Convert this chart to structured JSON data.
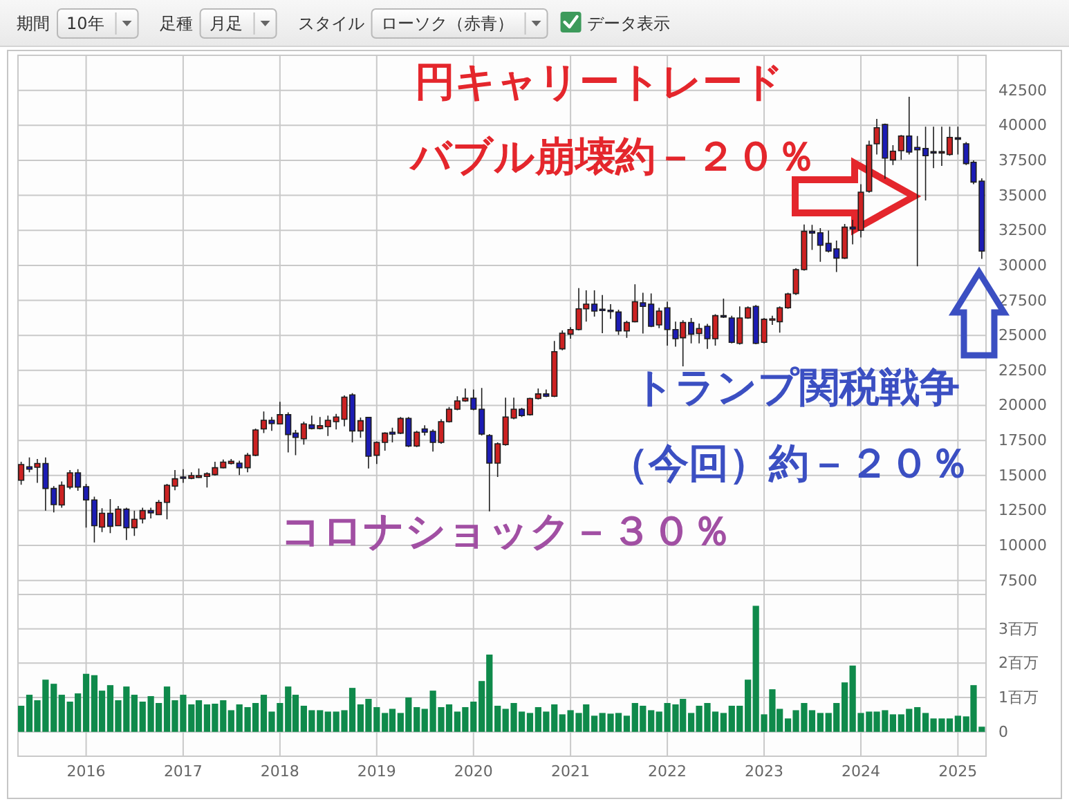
{
  "chart_data": [
    {
      "type": "other",
      "annotations": [
        "期間",
        "10年",
        "足種",
        "月足",
        "スタイル",
        "ローソク（赤青）",
        "データ表示"
      ]
    },
    {
      "type": "candlestick",
      "x": [
        "2015-05",
        "2015-06",
        "2015-07",
        "2015-08",
        "2015-09",
        "2015-10",
        "2015-11",
        "2015-12",
        "2016-01",
        "2016-02",
        "2016-03",
        "2016-04",
        "2016-05",
        "2016-06",
        "2016-07",
        "2016-08",
        "2016-09",
        "2016-10",
        "2016-11",
        "2016-12",
        "2017-01",
        "2017-02",
        "2017-03",
        "2017-04",
        "2017-05",
        "2017-06",
        "2017-07",
        "2017-08",
        "2017-09",
        "2017-10",
        "2017-11",
        "2017-12",
        "2018-01",
        "2018-02",
        "2018-03",
        "2018-04",
        "2018-05",
        "2018-06",
        "2018-07",
        "2018-08",
        "2018-09",
        "2018-10",
        "2018-11",
        "2018-12",
        "2019-01",
        "2019-02",
        "2019-03",
        "2019-04",
        "2019-05",
        "2019-06",
        "2019-07",
        "2019-08",
        "2019-09",
        "2019-10",
        "2019-11",
        "2019-12",
        "2020-01",
        "2020-02",
        "2020-03",
        "2020-04",
        "2020-05",
        "2020-06",
        "2020-07",
        "2020-08",
        "2020-09",
        "2020-10",
        "2020-11",
        "2020-12",
        "2021-01",
        "2021-02",
        "2021-03",
        "2021-04",
        "2021-05",
        "2021-06",
        "2021-07",
        "2021-08",
        "2021-09",
        "2021-10",
        "2021-11",
        "2021-12",
        "2022-01",
        "2022-02",
        "2022-03",
        "2022-04",
        "2022-05",
        "2022-06",
        "2022-07",
        "2022-08",
        "2022-09",
        "2022-10",
        "2022-11",
        "2022-12",
        "2023-01",
        "2023-02",
        "2023-03",
        "2023-04",
        "2023-05",
        "2023-06",
        "2023-07",
        "2023-08",
        "2023-09",
        "2023-10",
        "2023-11",
        "2023-12",
        "2024-01",
        "2024-02",
        "2024-03",
        "2024-04",
        "2024-05",
        "2024-06",
        "2024-07",
        "2024-08",
        "2024-09",
        "2024-10",
        "2024-11",
        "2024-12",
        "2025-01",
        "2025-02",
        "2025-03",
        "2025-04"
      ],
      "ohlc": [
        [
          14660,
          15980,
          14330,
          15780
        ],
        [
          15620,
          16280,
          15220,
          15450
        ],
        [
          15580,
          16180,
          14470,
          15850
        ],
        [
          15850,
          16280,
          12490,
          14070
        ],
        [
          14070,
          14240,
          12360,
          12920
        ],
        [
          12890,
          14570,
          12690,
          14300
        ],
        [
          14170,
          15390,
          14010,
          15190
        ],
        [
          15190,
          15450,
          13910,
          14170
        ],
        [
          14200,
          14400,
          11270,
          13250
        ],
        [
          13250,
          13480,
          10220,
          11410
        ],
        [
          11310,
          12660,
          10950,
          12300
        ],
        [
          12300,
          13310,
          10880,
          11370
        ],
        [
          11410,
          12820,
          11370,
          12590
        ],
        [
          12590,
          12690,
          10390,
          11270
        ],
        [
          11270,
          12490,
          10680,
          11870
        ],
        [
          11900,
          12690,
          11570,
          12490
        ],
        [
          12490,
          12690,
          11930,
          12330
        ],
        [
          12200,
          13250,
          12160,
          13080
        ],
        [
          13080,
          14400,
          11870,
          14300
        ],
        [
          14240,
          15390,
          13940,
          14760
        ],
        [
          14890,
          15450,
          14470,
          14800
        ],
        [
          14800,
          15220,
          14730,
          14990
        ],
        [
          14860,
          15490,
          14800,
          14990
        ],
        [
          14930,
          15220,
          14140,
          15120
        ],
        [
          15060,
          15980,
          14990,
          15550
        ],
        [
          15550,
          16140,
          15490,
          15950
        ],
        [
          15850,
          16180,
          15780,
          16010
        ],
        [
          15880,
          16050,
          15030,
          15550
        ],
        [
          15550,
          16610,
          15220,
          16440
        ],
        [
          16440,
          18350,
          16370,
          18250
        ],
        [
          18320,
          19570,
          18020,
          18940
        ],
        [
          18940,
          19170,
          18180,
          18710
        ],
        [
          18680,
          20260,
          18680,
          19340
        ],
        [
          19340,
          19500,
          16640,
          17920
        ],
        [
          18020,
          18250,
          16440,
          17720
        ],
        [
          17620,
          18840,
          17200,
          18680
        ],
        [
          18610,
          19270,
          18280,
          18350
        ],
        [
          18350,
          19170,
          18280,
          18550
        ],
        [
          18480,
          19270,
          17820,
          18940
        ],
        [
          18840,
          19400,
          18280,
          19170
        ],
        [
          19010,
          20720,
          18510,
          20590
        ],
        [
          20750,
          20880,
          17360,
          18180
        ],
        [
          18180,
          19140,
          17690,
          18910
        ],
        [
          19140,
          19170,
          15490,
          16370
        ],
        [
          16440,
          17430,
          15820,
          17360
        ],
        [
          17360,
          18090,
          16770,
          18020
        ],
        [
          18090,
          18410,
          17360,
          17950
        ],
        [
          18020,
          19170,
          17950,
          19070
        ],
        [
          19070,
          19170,
          17030,
          17100
        ],
        [
          17100,
          18180,
          17030,
          18090
        ],
        [
          18320,
          18580,
          17850,
          18090
        ],
        [
          18150,
          18280,
          16700,
          17360
        ],
        [
          17360,
          19010,
          17260,
          18840
        ],
        [
          18840,
          19890,
          18780,
          19730
        ],
        [
          19730,
          20650,
          19660,
          20320
        ],
        [
          20320,
          21210,
          20260,
          20520
        ],
        [
          20520,
          21140,
          19660,
          19730
        ],
        [
          19730,
          21240,
          17850,
          17950
        ],
        [
          17850,
          17950,
          12430,
          15880
        ],
        [
          15880,
          17360,
          14890,
          17260
        ],
        [
          17200,
          20550,
          17130,
          19170
        ],
        [
          19100,
          20550,
          19010,
          19730
        ],
        [
          19730,
          19830,
          19170,
          19270
        ],
        [
          19340,
          20550,
          19270,
          20490
        ],
        [
          20490,
          21210,
          20420,
          20820
        ],
        [
          20820,
          21140,
          20590,
          20650
        ],
        [
          20650,
          24600,
          20590,
          23840
        ],
        [
          24040,
          25360,
          23940,
          25160
        ],
        [
          25090,
          25590,
          24760,
          25420
        ],
        [
          25420,
          28380,
          25360,
          26900
        ],
        [
          26900,
          28220,
          25980,
          27230
        ],
        [
          27230,
          28220,
          26340,
          26740
        ],
        [
          26870,
          27890,
          25160,
          26840
        ],
        [
          26800,
          27230,
          26180,
          26770
        ],
        [
          26670,
          26840,
          25030,
          25320
        ],
        [
          25320,
          26050,
          24830,
          25920
        ],
        [
          25980,
          28650,
          25920,
          27400
        ],
        [
          27330,
          28050,
          25130,
          27070
        ],
        [
          27230,
          27990,
          25590,
          25650
        ],
        [
          25750,
          26970,
          25520,
          26740
        ],
        [
          26970,
          27400,
          24270,
          25420
        ],
        [
          25420,
          25980,
          24200,
          24760
        ],
        [
          24830,
          26080,
          22790,
          25920
        ],
        [
          25920,
          26240,
          24430,
          25090
        ],
        [
          25130,
          25850,
          24430,
          25490
        ],
        [
          25650,
          25820,
          24040,
          24760
        ],
        [
          24760,
          26510,
          24270,
          26410
        ],
        [
          26410,
          27630,
          26240,
          26310
        ],
        [
          26240,
          26410,
          24430,
          24500
        ],
        [
          24430,
          27070,
          24340,
          26240
        ],
        [
          26240,
          27070,
          26180,
          26970
        ],
        [
          27070,
          27170,
          24370,
          24430
        ],
        [
          24500,
          26240,
          24430,
          26150
        ],
        [
          26110,
          26410,
          25750,
          26180
        ],
        [
          25980,
          27070,
          25190,
          26970
        ],
        [
          26970,
          28050,
          26900,
          27960
        ],
        [
          27990,
          29800,
          27890,
          29700
        ],
        [
          29700,
          32920,
          29630,
          32430
        ],
        [
          32430,
          32890,
          31100,
          32300
        ],
        [
          32330,
          32660,
          30260,
          31440
        ],
        [
          31570,
          32490,
          30920,
          31020
        ],
        [
          31180,
          31770,
          29530,
          30520
        ],
        [
          30520,
          32960,
          30450,
          32730
        ],
        [
          32730,
          33250,
          31500,
          32600
        ],
        [
          32500,
          35790,
          32000,
          35230
        ],
        [
          35290,
          38910,
          35190,
          38580
        ],
        [
          38680,
          40460,
          37920,
          39830
        ],
        [
          40060,
          40130,
          36180,
          37660
        ],
        [
          37530,
          38580,
          37170,
          38150
        ],
        [
          38190,
          39310,
          37530,
          39240
        ],
        [
          39240,
          42040,
          37920,
          38090
        ],
        [
          38420,
          39240,
          29930,
          38250
        ],
        [
          38350,
          39900,
          34630,
          37830
        ],
        [
          38120,
          39900,
          36940,
          38060
        ],
        [
          38060,
          39900,
          37100,
          38120
        ],
        [
          37920,
          39900,
          37830,
          39140
        ],
        [
          39110,
          39900,
          37920,
          39050
        ],
        [
          38680,
          38810,
          37170,
          37270
        ],
        [
          37360,
          37500,
          35790,
          35950
        ],
        [
          36020,
          36210,
          30460,
          31020
        ]
      ],
      "colors": [
        "#cc2222",
        "#1c1cb4",
        "#cc2222",
        "#1c1cb4",
        "#1c1cb4",
        "#cc2222",
        "#cc2222",
        "#1c1cb4",
        "#1c1cb4",
        "#1c1cb4",
        "#cc2222",
        "#1c1cb4",
        "#cc2222",
        "#1c1cb4",
        "#cc2222",
        "#cc2222",
        "#1c1cb4",
        "#cc2222",
        "#cc2222",
        "#cc2222",
        "#1c1cb4",
        "#cc2222",
        "#cc2222",
        "#cc2222",
        "#cc2222",
        "#cc2222",
        "#cc2222",
        "#1c1cb4",
        "#cc2222",
        "#cc2222",
        "#cc2222",
        "#1c1cb4",
        "#cc2222",
        "#1c1cb4",
        "#1c1cb4",
        "#cc2222",
        "#1c1cb4",
        "#cc2222",
        "#cc2222",
        "#cc2222",
        "#cc2222",
        "#1c1cb4",
        "#cc2222",
        "#1c1cb4",
        "#cc2222",
        "#cc2222",
        "#1c1cb4",
        "#cc2222",
        "#1c1cb4",
        "#cc2222",
        "#1c1cb4",
        "#1c1cb4",
        "#cc2222",
        "#cc2222",
        "#cc2222",
        "#cc2222",
        "#1c1cb4",
        "#1c1cb4",
        "#1c1cb4",
        "#cc2222",
        "#cc2222",
        "#cc2222",
        "#1c1cb4",
        "#cc2222",
        "#cc2222",
        "#1c1cb4",
        "#cc2222",
        "#cc2222",
        "#cc2222",
        "#cc2222",
        "#cc2222",
        "#1c1cb4",
        "#1c1cb4",
        "#1c1cb4",
        "#1c1cb4",
        "#cc2222",
        "#cc2222",
        "#1c1cb4",
        "#1c1cb4",
        "#cc2222",
        "#1c1cb4",
        "#1c1cb4",
        "#cc2222",
        "#1c1cb4",
        "#cc2222",
        "#1c1cb4",
        "#cc2222",
        "#1c1cb4",
        "#1c1cb4",
        "#cc2222",
        "#cc2222",
        "#1c1cb4",
        "#cc2222",
        "#cc2222",
        "#cc2222",
        "#cc2222",
        "#cc2222",
        "#cc2222",
        "#1c1cb4",
        "#1c1cb4",
        "#1c1cb4",
        "#1c1cb4",
        "#cc2222",
        "#1c1cb4",
        "#cc2222",
        "#cc2222",
        "#cc2222",
        "#1c1cb4",
        "#cc2222",
        "#cc2222",
        "#1c1cb4",
        "#1c1cb4",
        "#1c1cb4",
        "#1c1cb4",
        "#cc2222",
        "#cc2222",
        "#1c1cb4",
        "#1c1cb4",
        "#1c1cb4",
        "#1c1cb4"
      ],
      "xlim": [
        "2015-04-19",
        "2025-04-17"
      ],
      "xticks": [
        {
          "value": "2016",
          "label": null
        },
        {
          "value": "2017",
          "label": null
        },
        {
          "value": "2018",
          "label": null
        },
        {
          "value": "2019",
          "label": null
        },
        {
          "value": "2020",
          "label": null
        },
        {
          "value": "2021",
          "label": null
        },
        {
          "value": "2022",
          "label": null
        },
        {
          "value": "2023",
          "label": null
        },
        {
          "value": "2024",
          "label": null
        },
        {
          "value": "2025",
          "label": null
        }
      ],
      "ylim": [
        6500,
        45000
      ],
      "yticks": [
        7500,
        10000,
        12500,
        15000,
        17500,
        20000,
        22500,
        25000,
        27500,
        30000,
        32500,
        35000,
        37500,
        40000,
        42500
      ],
      "grid": true,
      "tick_labels": "y",
      "annotations": [
        "円キャリートレード",
        "バブル崩壊約－２０％",
        "トランプ関税戦争",
        "（今回）約－２０％",
        "コロナショック－３０％"
      ]
    },
    {
      "type": "bar",
      "x": [
        "2015-05",
        "2015-06",
        "2015-07",
        "2015-08",
        "2015-09",
        "2015-10",
        "2015-11",
        "2015-12",
        "2016-01",
        "2016-02",
        "2016-03",
        "2016-04",
        "2016-05",
        "2016-06",
        "2016-07",
        "2016-08",
        "2016-09",
        "2016-10",
        "2016-11",
        "2016-12",
        "2017-01",
        "2017-02",
        "2017-03",
        "2017-04",
        "2017-05",
        "2017-06",
        "2017-07",
        "2017-08",
        "2017-09",
        "2017-10",
        "2017-11",
        "2017-12",
        "2018-01",
        "2018-02",
        "2018-03",
        "2018-04",
        "2018-05",
        "2018-06",
        "2018-07",
        "2018-08",
        "2018-09",
        "2018-10",
        "2018-11",
        "2018-12",
        "2019-01",
        "2019-02",
        "2019-03",
        "2019-04",
        "2019-05",
        "2019-06",
        "2019-07",
        "2019-08",
        "2019-09",
        "2019-10",
        "2019-11",
        "2019-12",
        "2020-01",
        "2020-02",
        "2020-03",
        "2020-04",
        "2020-05",
        "2020-06",
        "2020-07",
        "2020-08",
        "2020-09",
        "2020-10",
        "2020-11",
        "2020-12",
        "2021-01",
        "2021-02",
        "2021-03",
        "2021-04",
        "2021-05",
        "2021-06",
        "2021-07",
        "2021-08",
        "2021-09",
        "2021-10",
        "2021-11",
        "2021-12",
        "2022-01",
        "2022-02",
        "2022-03",
        "2022-04",
        "2022-05",
        "2022-06",
        "2022-07",
        "2022-08",
        "2022-09",
        "2022-10",
        "2022-11",
        "2022-12",
        "2023-01",
        "2023-02",
        "2023-03",
        "2023-04",
        "2023-05",
        "2023-06",
        "2023-07",
        "2023-08",
        "2023-09",
        "2023-10",
        "2023-11",
        "2023-12",
        "2024-01",
        "2024-02",
        "2024-03",
        "2024-04",
        "2024-05",
        "2024-06",
        "2024-07",
        "2024-08",
        "2024-09",
        "2024-10",
        "2024-11",
        "2024-12",
        "2025-01",
        "2025-02",
        "2025-03",
        "2025-04"
      ],
      "values": [
        0.76,
        1.08,
        0.92,
        1.52,
        1.4,
        1.08,
        0.88,
        1.12,
        1.69,
        1.65,
        1.2,
        1.36,
        0.92,
        1.32,
        1.08,
        0.88,
        1.04,
        0.84,
        1.32,
        0.92,
        1.08,
        0.8,
        0.92,
        0.8,
        0.82,
        0.92,
        0.63,
        0.8,
        0.72,
        0.84,
        1.08,
        0.59,
        0.84,
        1.32,
        1.08,
        0.76,
        0.63,
        0.63,
        0.59,
        0.59,
        0.63,
        1.28,
        0.8,
        0.96,
        0.72,
        0.55,
        0.67,
        0.55,
        1.0,
        0.72,
        0.67,
        1.2,
        0.72,
        0.8,
        0.59,
        0.72,
        0.88,
        1.48,
        2.25,
        0.76,
        0.67,
        0.84,
        0.59,
        0.55,
        0.72,
        0.59,
        0.8,
        0.51,
        0.63,
        0.55,
        0.8,
        0.47,
        0.55,
        0.53,
        0.55,
        0.47,
        0.84,
        0.76,
        0.63,
        0.59,
        0.84,
        0.8,
        0.96,
        0.55,
        0.76,
        0.84,
        0.59,
        0.55,
        0.76,
        0.76,
        1.52,
        3.67,
        0.51,
        1.24,
        0.67,
        0.39,
        0.63,
        0.84,
        0.63,
        0.55,
        0.55,
        0.84,
        1.44,
        1.93,
        0.55,
        0.59,
        0.59,
        0.63,
        0.51,
        0.51,
        0.67,
        0.72,
        0.55,
        0.39,
        0.39,
        0.39,
        0.47,
        0.45,
        1.36,
        0.15
      ],
      "color": "#0f8a4b",
      "xlim": [
        "2015-04-19",
        "2025-04-17"
      ],
      "xticks": [
        {
          "value": "2016",
          "label": "2016"
        },
        {
          "value": "2017",
          "label": "2017"
        },
        {
          "value": "2018",
          "label": "2018"
        },
        {
          "value": "2019",
          "label": "2019"
        },
        {
          "value": "2020",
          "label": "2020"
        },
        {
          "value": "2021",
          "label": "2021"
        },
        {
          "value": "2022",
          "label": "2022"
        },
        {
          "value": "2023",
          "label": "2023"
        },
        {
          "value": "2024",
          "label": "2024"
        },
        {
          "value": "2025",
          "label": "2025"
        }
      ],
      "ylim": [
        -0.71,
        4
      ],
      "yticks": [
        0,
        {
          "value": 1,
          "label": "1百万"
        },
        {
          "value": 2,
          "label": "2百万"
        },
        {
          "value": 3,
          "label": "3百万"
        }
      ],
      "grid": true
    }
  ]
}
